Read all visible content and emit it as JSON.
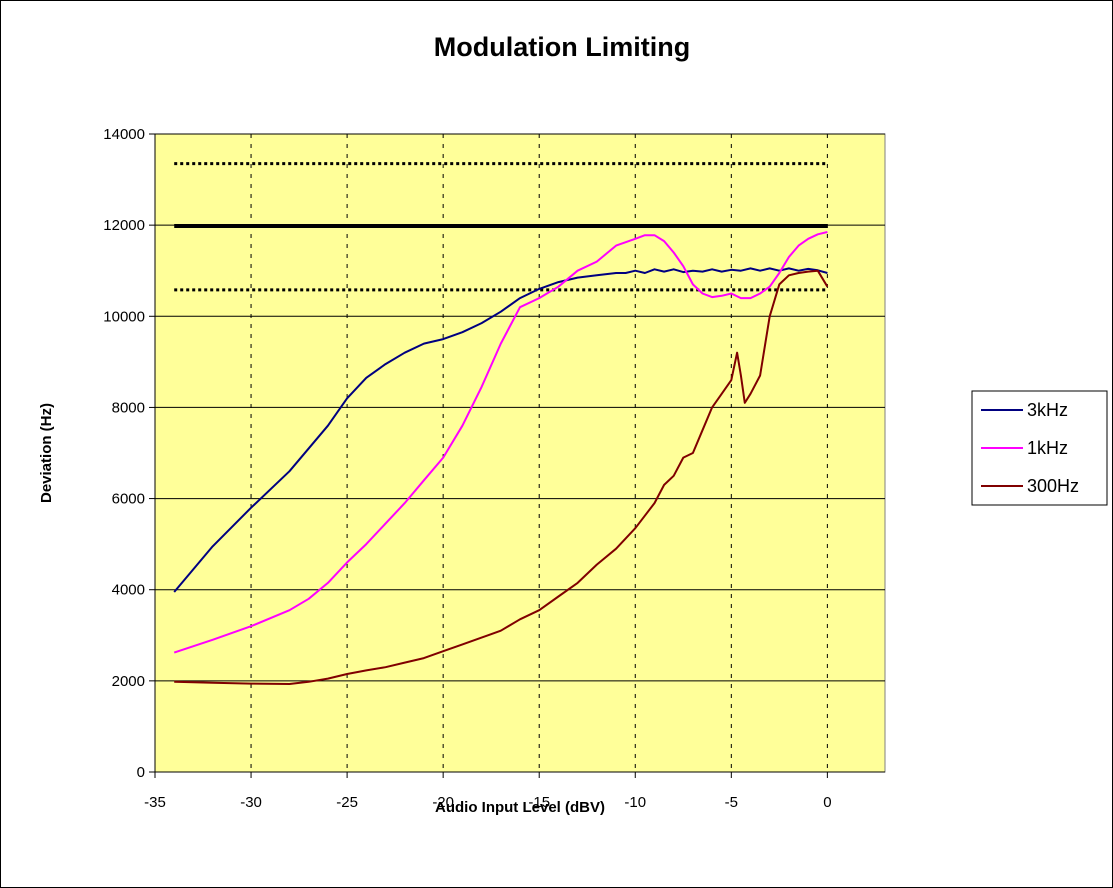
{
  "chart_data": {
    "type": "line",
    "title": "Modulation Limiting",
    "xlabel": "Audio Input Level (dBV)",
    "ylabel": "Deviation (Hz)",
    "xlim": [
      -35,
      3
    ],
    "ylim": [
      0,
      14000
    ],
    "xticks": [
      -35,
      -30,
      -25,
      -20,
      -15,
      -10,
      -5,
      0
    ],
    "xtick_labels": [
      "-35",
      "-30",
      "-25",
      "-20",
      "-15",
      "-10",
      "-5",
      "0"
    ],
    "yticks": [
      0,
      2000,
      4000,
      6000,
      8000,
      10000,
      12000,
      14000
    ],
    "ytick_labels": [
      "0",
      "2000",
      "4000",
      "6000",
      "8000",
      "10000",
      "12000",
      "14000"
    ],
    "grid": {
      "x": "dashed-vertical",
      "y": "solid-horizontal"
    },
    "plot_background": "#ffff99",
    "legend_position": "right",
    "series": [
      {
        "name": "3kHz",
        "color": "#000080",
        "x": [
          -34,
          -32,
          -30,
          -28,
          -26,
          -25,
          -24,
          -23,
          -22,
          -21,
          -20,
          -19,
          -18,
          -17,
          -16,
          -15,
          -14,
          -13,
          -12,
          -11,
          -10.5,
          -10,
          -9.5,
          -9,
          -8.5,
          -8,
          -7.5,
          -7,
          -6.5,
          -6,
          -5.5,
          -5,
          -4.5,
          -4,
          -3.5,
          -3,
          -2.5,
          -2,
          -1.5,
          -1,
          -0.5,
          0
        ],
        "y": [
          3950,
          4950,
          5800,
          6600,
          7600,
          8200,
          8650,
          8950,
          9200,
          9400,
          9500,
          9650,
          9850,
          10100,
          10400,
          10600,
          10750,
          10850,
          10900,
          10950,
          10950,
          11000,
          10950,
          11030,
          10980,
          11030,
          10970,
          11000,
          10980,
          11030,
          10980,
          11020,
          11000,
          11050,
          11000,
          11050,
          11000,
          11050,
          11000,
          11040,
          11010,
          10950
        ]
      },
      {
        "name": "1kHz",
        "color": "#ff00ff",
        "x": [
          -34,
          -32,
          -30,
          -28,
          -27,
          -26,
          -25,
          -24,
          -23,
          -22,
          -21,
          -20,
          -19,
          -18,
          -17,
          -16,
          -15,
          -14,
          -13,
          -12,
          -11,
          -10,
          -9.5,
          -9,
          -8.5,
          -8,
          -7.5,
          -7,
          -6.5,
          -6,
          -5.5,
          -5,
          -4.5,
          -4,
          -3.5,
          -3,
          -2.5,
          -2,
          -1.5,
          -1,
          -0.5,
          0
        ],
        "y": [
          2620,
          2900,
          3200,
          3550,
          3800,
          4150,
          4600,
          5000,
          5450,
          5900,
          6400,
          6900,
          7600,
          8450,
          9400,
          10200,
          10400,
          10650,
          11000,
          11200,
          11550,
          11700,
          11780,
          11780,
          11650,
          11400,
          11100,
          10700,
          10500,
          10420,
          10450,
          10500,
          10400,
          10400,
          10500,
          10650,
          10950,
          11300,
          11550,
          11700,
          11800,
          11850
        ]
      },
      {
        "name": "300Hz",
        "color": "#800000",
        "x": [
          -34,
          -32,
          -30,
          -28,
          -27,
          -26,
          -25,
          -24,
          -23,
          -22,
          -21,
          -20,
          -19,
          -18,
          -17,
          -16,
          -15,
          -14,
          -13,
          -12,
          -11,
          -10,
          -9,
          -8.5,
          -8,
          -7.5,
          -7,
          -6.5,
          -6,
          -5.5,
          -5,
          -4.7,
          -4.5,
          -4.3,
          -4,
          -3.5,
          -3,
          -2.5,
          -2,
          -1.5,
          -1,
          -0.5,
          0
        ],
        "y": [
          1980,
          1960,
          1940,
          1930,
          1980,
          2050,
          2150,
          2230,
          2300,
          2400,
          2500,
          2650,
          2800,
          2950,
          3100,
          3350,
          3550,
          3850,
          4150,
          4550,
          4900,
          5350,
          5900,
          6300,
          6500,
          6900,
          7000,
          7500,
          8000,
          8300,
          8600,
          9200,
          8700,
          8100,
          8300,
          8700,
          10000,
          10700,
          10900,
          10950,
          10980,
          11000,
          10650
        ]
      }
    ],
    "reference_lines": [
      {
        "y": 13350,
        "style": "dotted",
        "color": "#000000"
      },
      {
        "y": 11980,
        "style": "solid",
        "color": "#000000"
      },
      {
        "y": 10580,
        "style": "dotted",
        "color": "#000000"
      }
    ]
  }
}
